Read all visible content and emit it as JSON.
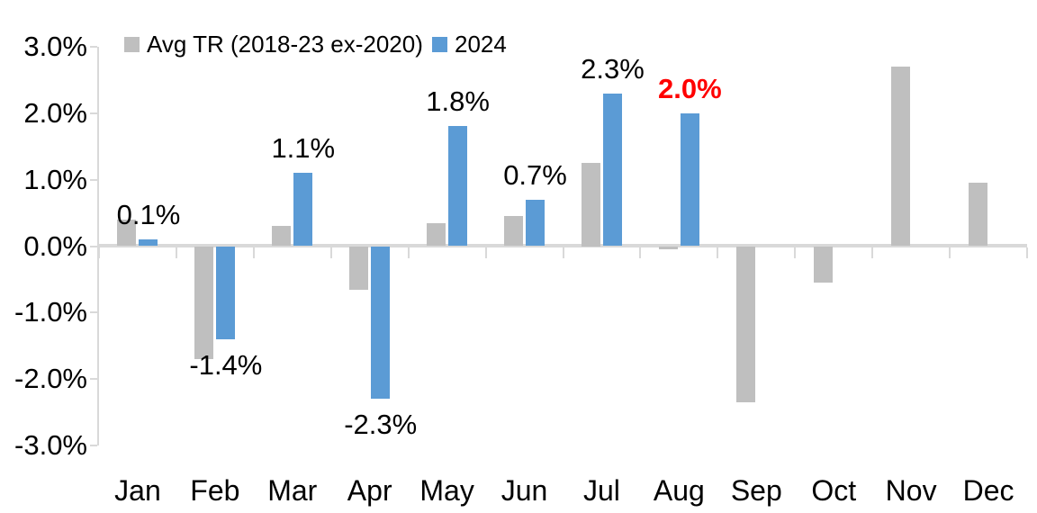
{
  "chart_data": {
    "type": "bar",
    "title": "",
    "xlabel": "",
    "ylabel": "",
    "categories": [
      "Jan",
      "Feb",
      "Mar",
      "Apr",
      "May",
      "Jun",
      "Jul",
      "Aug",
      "Sep",
      "Oct",
      "Nov",
      "Dec"
    ],
    "series": [
      {
        "name": "Avg TR (2018-23 ex-2020)",
        "color": "#BFBFBF",
        "values": [
          0.4,
          -1.7,
          0.3,
          -0.65,
          0.35,
          0.45,
          1.25,
          -0.05,
          -2.35,
          -0.55,
          2.7,
          0.95
        ],
        "data_labels": [
          null,
          null,
          null,
          null,
          null,
          null,
          null,
          null,
          null,
          null,
          null,
          null
        ]
      },
      {
        "name": "2024",
        "color": "#5B9BD5",
        "values": [
          0.1,
          -1.4,
          1.1,
          -2.3,
          1.8,
          0.7,
          2.3,
          2.0,
          null,
          null,
          null,
          null
        ],
        "data_labels": [
          {
            "text": "0.1%",
            "color": "#000000",
            "bold": false
          },
          {
            "text": "-1.4%",
            "color": "#000000",
            "bold": false
          },
          {
            "text": "1.1%",
            "color": "#000000",
            "bold": false
          },
          {
            "text": "-2.3%",
            "color": "#000000",
            "bold": false
          },
          {
            "text": "1.8%",
            "color": "#000000",
            "bold": false
          },
          {
            "text": "0.7%",
            "color": "#000000",
            "bold": false
          },
          {
            "text": "2.3%",
            "color": "#000000",
            "bold": false
          },
          {
            "text": "2.0%",
            "color": "#FF0000",
            "bold": true
          },
          null,
          null,
          null,
          null
        ]
      }
    ],
    "ylim": [
      -3,
      3
    ],
    "ytick_step": 1,
    "ytick_labels": [
      "3.0%",
      "2.0%",
      "1.0%",
      "0.0%",
      "-1.0%",
      "-2.0%",
      "-3.0%"
    ],
    "grid": false,
    "legend_position": "top"
  },
  "legend": {
    "items": [
      {
        "label": "Avg TR (2018-23 ex-2020)",
        "color": "#BFBFBF"
      },
      {
        "label": "2024",
        "color": "#5B9BD5"
      }
    ]
  },
  "colors": {
    "bar_gray": "#BFBFBF",
    "bar_blue": "#5B9BD5",
    "axis": "#D9D9D9",
    "text": "#000000",
    "highlight_red": "#FF0000",
    "background": "#FFFFFF"
  }
}
